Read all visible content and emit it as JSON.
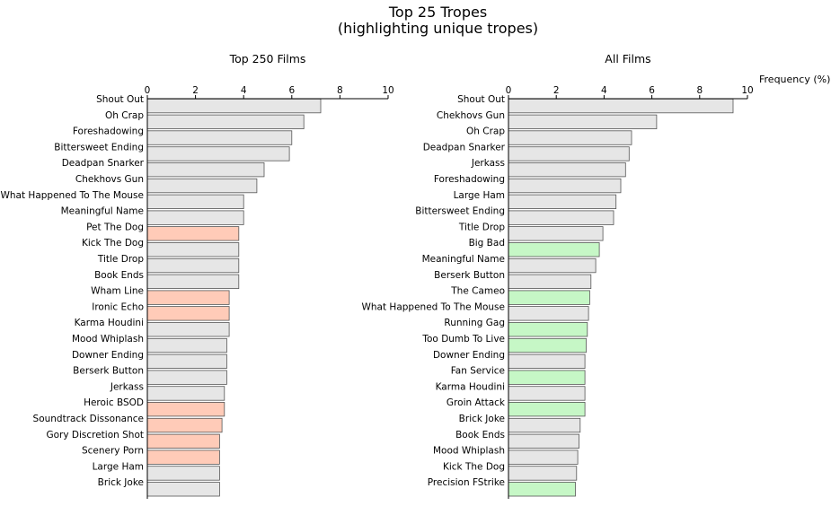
{
  "figure": {
    "title_line1": "Top 25 Tropes",
    "title_line2": "(highlighting unique tropes)",
    "xlabel": "Frequency (%)"
  },
  "colors": {
    "common": "#e6e6e6",
    "unique_top250": "#ffcbb8",
    "unique_all": "#c6f7c6",
    "edge": "#555555"
  },
  "chart_data": [
    {
      "type": "bar",
      "orientation": "horizontal",
      "title": "Top 250 Films",
      "xlim": [
        0,
        10
      ],
      "xticks": [
        0,
        2,
        4,
        6,
        8,
        10
      ],
      "categories": [
        "Shout Out",
        "Oh Crap",
        "Foreshadowing",
        "Bittersweet Ending",
        "Deadpan Snarker",
        "Chekhovs Gun",
        "What Happened To The Mouse",
        "Meaningful Name",
        "Pet The Dog",
        "Kick The Dog",
        "Title Drop",
        "Book Ends",
        "Wham Line",
        "Ironic Echo",
        "Karma Houdini",
        "Mood Whiplash",
        "Downer Ending",
        "Berserk Button",
        "Jerkass",
        "Heroic BSOD",
        "Soundtrack Dissonance",
        "Gory Discretion Shot",
        "Scenery Porn",
        "Large Ham",
        "Brick Joke"
      ],
      "values": [
        7.2,
        6.5,
        6.0,
        5.9,
        4.85,
        4.55,
        4.0,
        4.0,
        3.8,
        3.8,
        3.8,
        3.8,
        3.4,
        3.4,
        3.4,
        3.3,
        3.3,
        3.3,
        3.2,
        3.2,
        3.1,
        3.0,
        3.0,
        3.0,
        3.0
      ],
      "unique": [
        false,
        false,
        false,
        false,
        false,
        false,
        false,
        false,
        true,
        false,
        false,
        false,
        true,
        true,
        false,
        false,
        false,
        false,
        false,
        true,
        true,
        true,
        true,
        false,
        false
      ]
    },
    {
      "type": "bar",
      "orientation": "horizontal",
      "title": "All Films",
      "xlim": [
        0,
        10
      ],
      "xticks": [
        0,
        2,
        4,
        6,
        8,
        10
      ],
      "categories": [
        "Shout Out",
        "Chekhovs Gun",
        "Oh Crap",
        "Deadpan Snarker",
        "Jerkass",
        "Foreshadowing",
        "Large Ham",
        "Bittersweet Ending",
        "Title Drop",
        "Big Bad",
        "Meaningful Name",
        "Berserk Button",
        "The Cameo",
        "What Happened To The Mouse",
        "Running Gag",
        "Too Dumb To Live",
        "Downer Ending",
        "Fan Service",
        "Karma Houdini",
        "Groin Attack",
        "Brick Joke",
        "Book Ends",
        "Mood Whiplash",
        "Kick The Dog",
        "Precision FStrike"
      ],
      "values": [
        9.4,
        6.2,
        5.15,
        5.05,
        4.9,
        4.7,
        4.5,
        4.4,
        3.95,
        3.8,
        3.65,
        3.45,
        3.4,
        3.35,
        3.3,
        3.25,
        3.2,
        3.2,
        3.2,
        3.2,
        3.0,
        2.95,
        2.9,
        2.85,
        2.8
      ],
      "unique": [
        false,
        false,
        false,
        false,
        false,
        false,
        false,
        false,
        false,
        true,
        false,
        false,
        true,
        false,
        true,
        true,
        false,
        true,
        false,
        true,
        false,
        false,
        false,
        false,
        true
      ]
    }
  ]
}
